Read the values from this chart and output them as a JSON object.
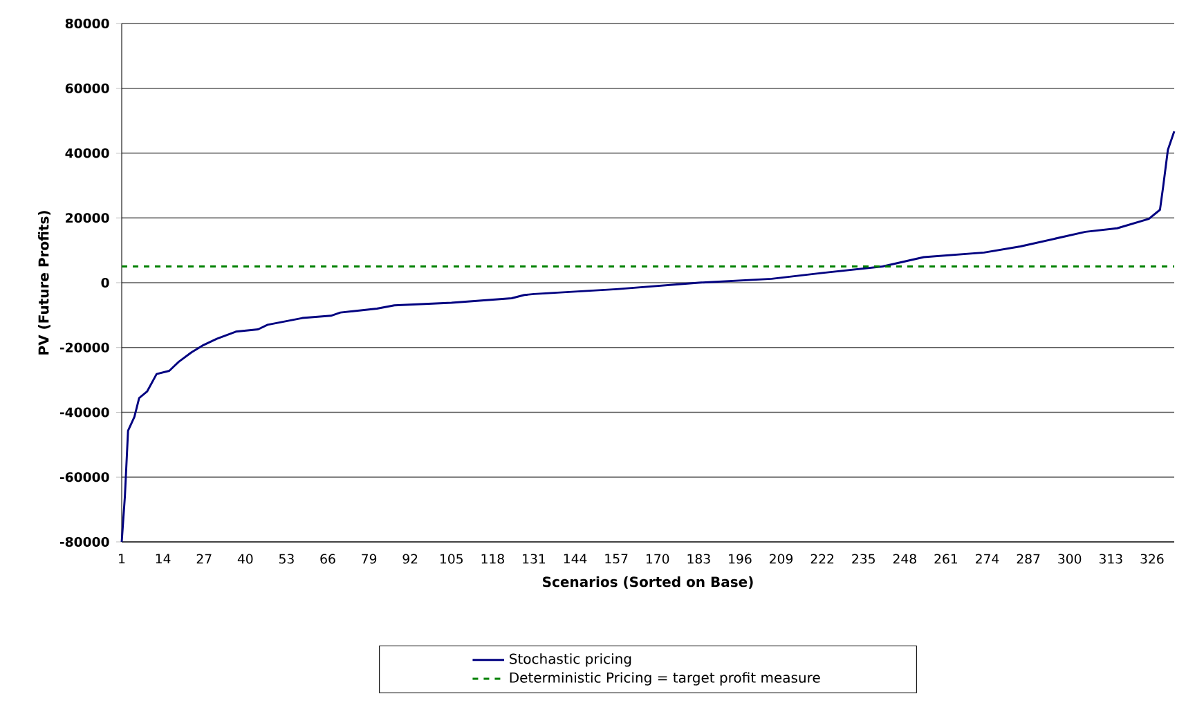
{
  "chart_data": {
    "type": "line",
    "xlabel": "Scenarios (Sorted on Base)",
    "ylabel": "PV (Future Profits)",
    "xlim": [
      1,
      333
    ],
    "xticks": [
      1,
      14,
      27,
      40,
      53,
      66,
      79,
      92,
      105,
      118,
      131,
      144,
      157,
      170,
      183,
      196,
      209,
      222,
      235,
      248,
      261,
      274,
      287,
      300,
      313,
      326
    ],
    "ylim": [
      -80000,
      80000
    ],
    "yticks": [
      -80000,
      -60000,
      -40000,
      -20000,
      0,
      20000,
      40000,
      60000,
      80000
    ],
    "grid": "y",
    "legend": "bottom",
    "marker": "none",
    "series": [
      {
        "name": "Stochastic pricing",
        "color": "#000080",
        "line_style": "solid",
        "x": [
          1,
          2,
          3,
          5,
          6.5,
          9,
          12,
          16,
          19,
          23,
          26.5,
          31,
          37,
          44,
          47,
          58,
          67,
          70,
          81.5,
          87,
          105,
          124,
          128,
          131,
          157,
          183,
          206,
          222,
          241,
          254,
          273,
          284.5,
          305,
          315,
          325,
          328.5,
          329.5,
          331,
          333
        ],
        "values": [
          -80000,
          -66000,
          -45700,
          -41400,
          -35600,
          -33600,
          -28200,
          -27200,
          -24400,
          -21500,
          -19400,
          -17300,
          -15100,
          -14400,
          -13000,
          -10900,
          -10200,
          -9200,
          -8000,
          -7000,
          -6200,
          -4800,
          -3800,
          -3500,
          -2000,
          0,
          1200,
          3000,
          5000,
          7900,
          9300,
          11200,
          15700,
          16800,
          19700,
          22500,
          29600,
          41000,
          46700
        ]
      },
      {
        "name": "Deterministic Pricing = target profit measure",
        "color": "#008000",
        "line_style": "dashed",
        "x": [
          1,
          333
        ],
        "values": [
          5000,
          5000
        ]
      }
    ]
  }
}
